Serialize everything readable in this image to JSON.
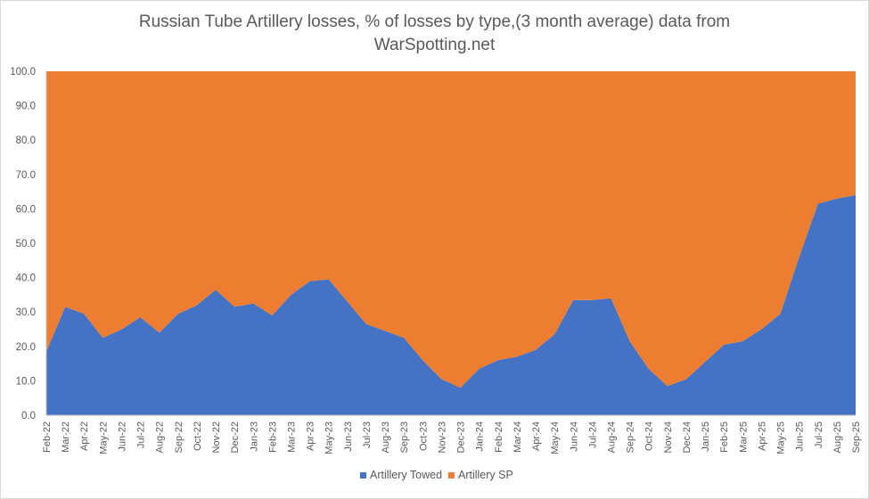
{
  "chart_data": {
    "type": "area",
    "stacked": "percent",
    "title_line1": "Russian Tube Artillery losses, % of losses by type,(3 month average) data from",
    "title_line2": "WarSpotting.net",
    "xlabel": "",
    "ylabel": "",
    "ylim": [
      0,
      100
    ],
    "yticks": [
      "0.0",
      "10.0",
      "20.0",
      "30.0",
      "40.0",
      "50.0",
      "60.0",
      "70.0",
      "80.0",
      "90.0",
      "100.0"
    ],
    "categories": [
      "Feb-22",
      "Mar-22",
      "Apr-22",
      "May-22",
      "Jun-22",
      "Jul-22",
      "Aug-22",
      "Sep-22",
      "Oct-22",
      "Nov-22",
      "Dec-22",
      "Jan-23",
      "Feb-23",
      "Mar-23",
      "Apr-23",
      "May-23",
      "Jun-23",
      "Jul-23",
      "Aug-23",
      "Sep-23",
      "Oct-23",
      "Nov-23",
      "Dec-23",
      "Jan-24",
      "Feb-24",
      "Mar-24",
      "Apr-24",
      "May-24",
      "Jun-24",
      "Jul-24",
      "Aug-24",
      "Sep-24",
      "Oct-24",
      "Nov-24",
      "Dec-24",
      "Jan-25",
      "Feb-25",
      "Mar-25",
      "Apr-25",
      "May-25",
      "Jun-25",
      "Jul-25",
      "Aug-25",
      "Sep-25"
    ],
    "series": [
      {
        "name": "Artillery Towed",
        "color": "#4472c4",
        "values": [
          18.5,
          31.5,
          29.5,
          22.5,
          25,
          28.5,
          24,
          29.5,
          32,
          36.5,
          31.5,
          32.5,
          29,
          35,
          39,
          39.5,
          33,
          26.5,
          24.5,
          22.5,
          16,
          10.5,
          8,
          13.5,
          16,
          17,
          19,
          23.5,
          33.5,
          33.5,
          34,
          21.5,
          13.5,
          8.5,
          10.5,
          15.5,
          20.5,
          21.5,
          25,
          29.5,
          46,
          61.5,
          63,
          64
        ]
      },
      {
        "name": "Artillery SP",
        "color": "#ed7d31",
        "values": [
          81.5,
          68.5,
          70.5,
          77.5,
          75,
          71.5,
          76,
          70.5,
          68,
          63.5,
          68.5,
          67.5,
          71,
          65,
          61,
          60.5,
          67,
          73.5,
          75.5,
          77.5,
          84,
          89.5,
          92,
          86.5,
          84,
          83,
          81,
          76.5,
          66.5,
          66.5,
          66,
          78.5,
          86.5,
          91.5,
          89.5,
          84.5,
          79.5,
          78.5,
          75,
          70.5,
          54,
          38.5,
          37,
          36
        ]
      }
    ],
    "legend_position": "bottom"
  }
}
